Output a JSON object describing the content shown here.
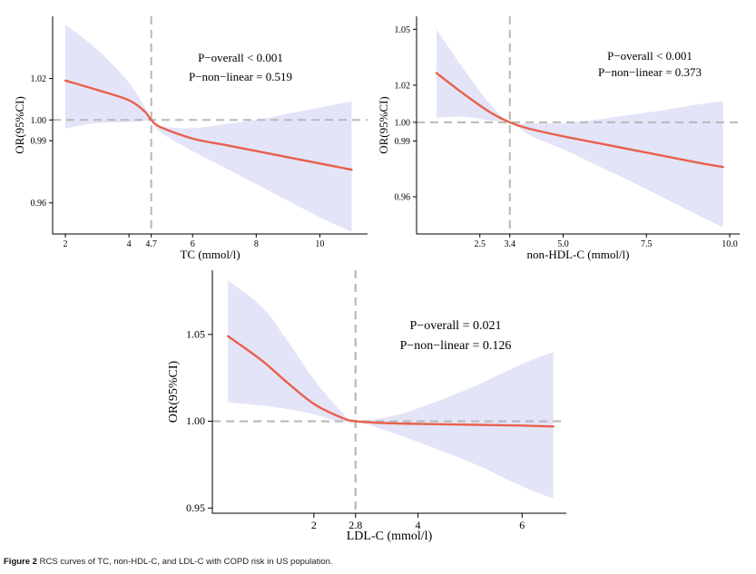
{
  "caption": {
    "label": "Figure 2",
    "text": "RCS curves of TC, non-HDL-C, and LDL-C with COPD risk in US population."
  },
  "colors": {
    "curve": "#e8604c",
    "band": "#e3e4f8",
    "reference": "#b8b8b8",
    "axis": "#000000"
  },
  "chart_data": [
    {
      "type": "line",
      "title": "",
      "xlabel": "TC (mmol/l)",
      "ylabel": "OR(95%CI)",
      "xlim": [
        1.6,
        11.5
      ],
      "ylim": [
        0.945,
        1.05
      ],
      "xticks": [
        2,
        4,
        4.7,
        6,
        8,
        10
      ],
      "xtick_labels": [
        "2",
        "4",
        "4.7",
        "6",
        "8",
        "10"
      ],
      "yticks": [
        0.96,
        0.99,
        1.0,
        1.02
      ],
      "ytick_labels": [
        "0.96",
        "0.99",
        "1.00",
        "1.02"
      ],
      "reference_x": 4.7,
      "reference_y": 1.0,
      "annotations": [
        "P−overall < 0.001",
        "P−non−linear = 0.519"
      ],
      "series": [
        {
          "name": "OR",
          "x": [
            2,
            3,
            4,
            4.5,
            4.7,
            5,
            6,
            7,
            8,
            9,
            10,
            11
          ],
          "values": [
            1.019,
            1.0145,
            1.0095,
            1.004,
            1.0,
            0.9965,
            0.991,
            0.988,
            0.985,
            0.982,
            0.979,
            0.976
          ]
        },
        {
          "name": "upper 95% CI",
          "x": [
            2,
            3,
            4,
            4.5,
            4.7,
            5,
            6,
            7,
            8,
            9,
            10,
            11
          ],
          "values": [
            1.046,
            1.034,
            1.018,
            1.006,
            1.0,
            0.997,
            0.996,
            0.998,
            1.0,
            1.003,
            1.006,
            1.009
          ]
        },
        {
          "name": "lower 95% CI",
          "x": [
            2,
            3,
            4,
            4.5,
            4.7,
            5,
            6,
            7,
            8,
            9,
            10,
            11
          ],
          "values": [
            0.996,
            0.9985,
            0.999,
            0.9995,
            1.0,
            0.994,
            0.985,
            0.977,
            0.969,
            0.961,
            0.953,
            0.946
          ]
        }
      ]
    },
    {
      "type": "line",
      "title": "",
      "xlabel": "non-HDL-C (mmol/l)",
      "ylabel": "OR(95%CI)",
      "xlim": [
        0.6,
        10.3
      ],
      "ylim": [
        0.94,
        1.057
      ],
      "xticks": [
        2.5,
        3.4,
        5.0,
        7.5,
        10.0
      ],
      "xtick_labels": [
        "2.5",
        "3.4",
        "5.0",
        "7.5",
        "10.0"
      ],
      "yticks": [
        0.96,
        0.99,
        1.0,
        1.02,
        1.05
      ],
      "ytick_labels": [
        "0.96",
        "0.99",
        "1.00",
        "1.02",
        "1.05"
      ],
      "reference_x": 3.4,
      "reference_y": 1.0,
      "annotations": [
        "P−overall < 0.001",
        "P−non−linear = 0.373"
      ],
      "series": [
        {
          "name": "OR",
          "x": [
            1.2,
            2,
            2.8,
            3.4,
            4,
            5,
            6,
            7,
            8,
            9,
            9.8
          ],
          "values": [
            1.0265,
            1.0155,
            1.0055,
            1.0,
            0.9965,
            0.9925,
            0.989,
            0.9855,
            0.982,
            0.9785,
            0.976
          ]
        },
        {
          "name": "upper 95% CI",
          "x": [
            1.2,
            2,
            2.8,
            3.4,
            4,
            5,
            6,
            7,
            8,
            9,
            9.8
          ],
          "values": [
            1.05,
            1.029,
            1.01,
            1.0,
            0.9995,
            0.9995,
            1.0015,
            1.004,
            1.0065,
            1.0095,
            1.0115
          ]
        },
        {
          "name": "lower 95% CI",
          "x": [
            1.2,
            2,
            2.8,
            3.4,
            4,
            5,
            6,
            7,
            8,
            9,
            9.8
          ],
          "values": [
            1.0025,
            1.003,
            1.001,
            1.0,
            0.993,
            0.9855,
            0.977,
            0.9685,
            0.9595,
            0.9505,
            0.9435
          ]
        }
      ]
    },
    {
      "type": "line",
      "title": "",
      "xlabel": "LDL-C (mmol/l)",
      "ylabel": "OR(95%CI)",
      "xlim": [
        0.05,
        6.85
      ],
      "ylim": [
        0.947,
        1.087
      ],
      "xticks": [
        2,
        2.8,
        4,
        6
      ],
      "xtick_labels": [
        "2",
        "2.8",
        "4",
        "6"
      ],
      "yticks": [
        0.95,
        1.0,
        1.05
      ],
      "ytick_labels": [
        "0.95",
        "1.00",
        "1.05"
      ],
      "reference_x": 2.8,
      "reference_y": 1.0,
      "annotations": [
        "P−overall = 0.021",
        "P−non−linear = 0.126"
      ],
      "series": [
        {
          "name": "OR",
          "x": [
            0.35,
            1.0,
            1.5,
            2.0,
            2.5,
            2.8,
            3.5,
            4,
            5,
            6,
            6.6
          ],
          "values": [
            1.049,
            1.035,
            1.022,
            1.01,
            1.0025,
            1.0,
            0.9988,
            0.9985,
            0.998,
            0.9975,
            0.997
          ]
        },
        {
          "name": "upper 95% CI",
          "x": [
            0.35,
            1.0,
            1.5,
            2.0,
            2.5,
            2.8,
            3.5,
            4,
            5,
            6,
            6.6
          ],
          "values": [
            1.081,
            1.066,
            1.046,
            1.024,
            1.0065,
            1.0,
            1.003,
            1.0075,
            1.019,
            1.033,
            1.04
          ]
        },
        {
          "name": "lower 95% CI",
          "x": [
            0.35,
            1.0,
            1.5,
            2.0,
            2.5,
            2.8,
            3.5,
            4,
            5,
            6,
            6.6
          ],
          "values": [
            1.011,
            1.009,
            1.007,
            1.004,
            0.9995,
            1.0,
            0.9935,
            0.988,
            0.9765,
            0.9625,
            0.9555
          ]
        }
      ]
    }
  ]
}
